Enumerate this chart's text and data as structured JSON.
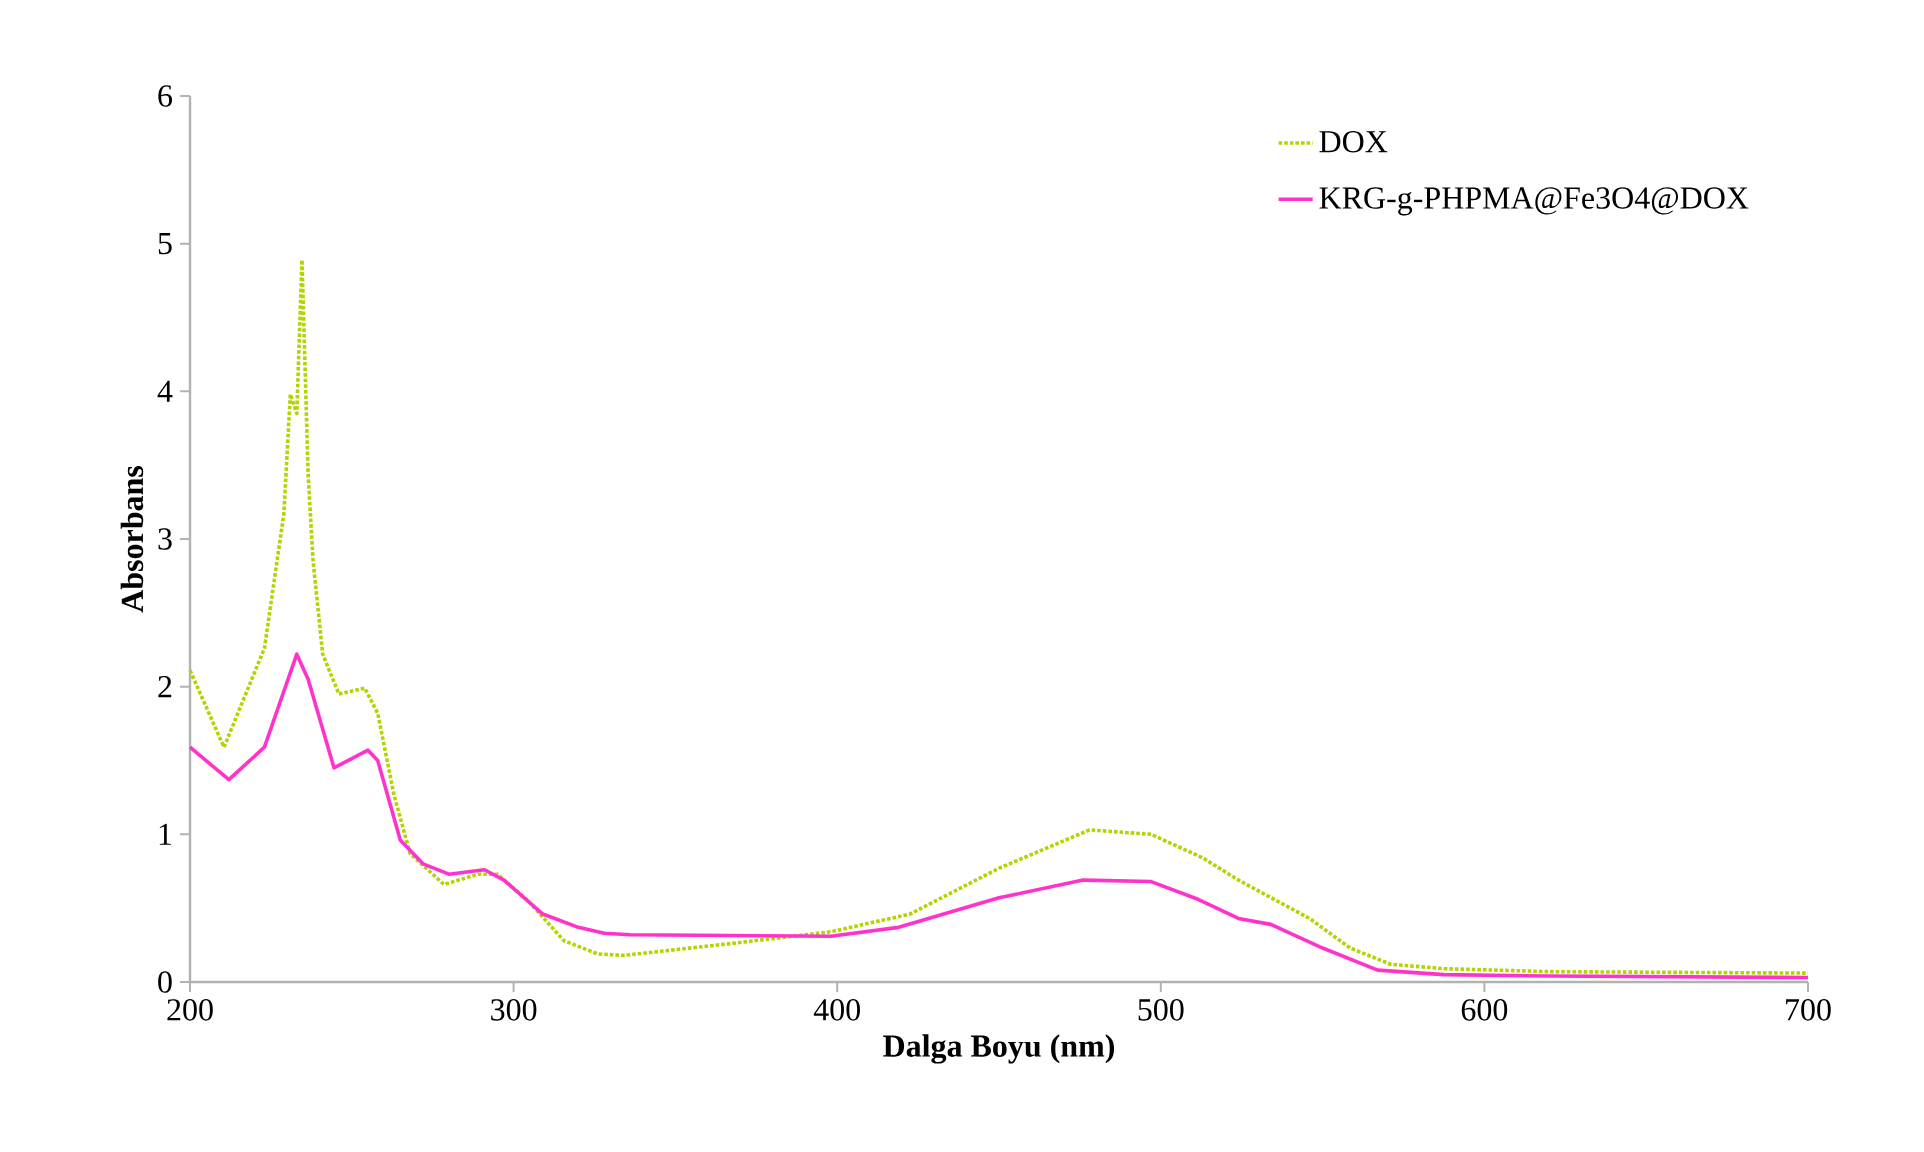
{
  "chart_data": {
    "type": "line",
    "xlabel": "Dalga Boyu (nm)",
    "ylabel": "Absorbans",
    "xlim": [
      200,
      700
    ],
    "ylim": [
      0,
      6
    ],
    "xticks": [
      200,
      300,
      400,
      500,
      600,
      700
    ],
    "yticks": [
      0,
      1,
      2,
      3,
      4,
      5,
      6
    ],
    "grid": false,
    "legend": "top right",
    "marker": "none",
    "series": [
      {
        "name": "DOX",
        "color": "#b5d300",
        "line_style": "dotted",
        "x": [
          200,
          210.5,
          223,
          229,
          231,
          233,
          234.6,
          236.5,
          238,
          241,
          246,
          254,
          258,
          263,
          268,
          278.5,
          289,
          295,
          304.5,
          315.5,
          326,
          334,
          367,
          398,
          422.5,
          450,
          478,
          497,
          513,
          524,
          546,
          558.5,
          571,
          587.5,
          620,
          700
        ],
        "values": [
          2.11,
          1.59,
          2.26,
          3.17,
          3.98,
          3.85,
          4.89,
          3.44,
          2.86,
          2.22,
          1.95,
          1.99,
          1.82,
          1.27,
          0.87,
          0.66,
          0.73,
          0.73,
          0.55,
          0.28,
          0.19,
          0.18,
          0.26,
          0.34,
          0.46,
          0.77,
          1.03,
          1.0,
          0.84,
          0.69,
          0.43,
          0.23,
          0.12,
          0.09,
          0.07,
          0.06
        ]
      },
      {
        "name": "KRG-g-PHPMA@Fe3O4@DOX",
        "color": "#ff33cc",
        "line_style": "solid",
        "x": [
          200,
          212,
          223,
          233,
          236.5,
          244.5,
          255,
          258,
          265,
          272,
          280,
          291,
          297,
          309,
          320,
          328,
          336,
          398,
          419,
          450,
          476,
          497,
          511.5,
          524,
          534,
          550,
          567,
          587.5,
          620,
          700
        ],
        "values": [
          1.59,
          1.37,
          1.59,
          2.22,
          2.05,
          1.45,
          1.57,
          1.5,
          0.96,
          0.8,
          0.73,
          0.76,
          0.69,
          0.46,
          0.37,
          0.33,
          0.32,
          0.31,
          0.37,
          0.57,
          0.69,
          0.68,
          0.56,
          0.43,
          0.39,
          0.23,
          0.08,
          0.05,
          0.04,
          0.03
        ]
      }
    ]
  }
}
